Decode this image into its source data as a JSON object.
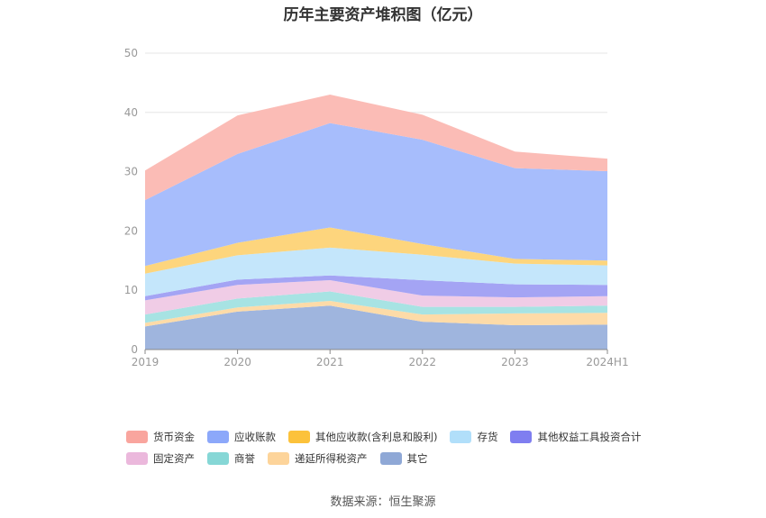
{
  "chart_data": {
    "type": "area",
    "stacked": true,
    "title": "历年主要资产堆积图（亿元）",
    "categories": [
      "2019",
      "2020",
      "2021",
      "2022",
      "2023",
      "2024H1"
    ],
    "ylim": [
      0,
      50
    ],
    "yticks": [
      0,
      10,
      20,
      30,
      40,
      50
    ],
    "grid": true,
    "legend_position": "bottom",
    "series": [
      {
        "name": "其它",
        "color": "#9fb5de",
        "values": [
          3.9,
          6.4,
          7.4,
          4.7,
          4.1,
          4.2
        ]
      },
      {
        "name": "递延所得税资产",
        "color": "#fddba8",
        "values": [
          0.6,
          0.7,
          0.8,
          1.2,
          2.0,
          2.0
        ]
      },
      {
        "name": "商誉",
        "color": "#a7e3e3",
        "values": [
          1.4,
          1.5,
          1.6,
          1.3,
          1.1,
          1.2
        ]
      },
      {
        "name": "固定资产",
        "color": "#f0cce6",
        "values": [
          2.4,
          2.3,
          1.9,
          1.9,
          1.6,
          1.6
        ]
      },
      {
        "name": "其他权益工具投资合计",
        "color": "#a4a4f4",
        "values": [
          0.7,
          0.9,
          0.8,
          2.6,
          2.2,
          1.9
        ]
      },
      {
        "name": "存货",
        "color": "#c4e6fb",
        "values": [
          3.8,
          4.1,
          4.7,
          4.3,
          3.5,
          3.3
        ]
      },
      {
        "name": "其他应收款(含利息和股利)",
        "color": "#fdd57d",
        "values": [
          1.3,
          2.1,
          3.4,
          1.8,
          0.8,
          0.8
        ]
      },
      {
        "name": "应收账款",
        "color": "#a7bdfc",
        "values": [
          11.1,
          15.0,
          17.6,
          17.6,
          15.3,
          15.1
        ]
      },
      {
        "name": "货币资金",
        "color": "#fbbcb6",
        "values": [
          5.0,
          6.5,
          4.8,
          4.2,
          2.8,
          2.1
        ]
      }
    ]
  },
  "legend": {
    "row1": [
      {
        "label": "货币资金",
        "color": "#f9a59e"
      },
      {
        "label": "应收账款",
        "color": "#8ca8fa"
      },
      {
        "label": "其他应收款(含利息和股利)",
        "color": "#fcc23b"
      },
      {
        "label": "存货",
        "color": "#b1dffa"
      },
      {
        "label": "其他权益工具投资合计",
        "color": "#7f7ef0"
      }
    ],
    "row2": [
      {
        "label": "固定资产",
        "color": "#ebb8dc"
      },
      {
        "label": "商誉",
        "color": "#86d7d6"
      },
      {
        "label": "递延所得税资产",
        "color": "#fdd49a"
      },
      {
        "label": "其它",
        "color": "#8fa8d6"
      }
    ]
  },
  "source": "数据来源：恒生聚源"
}
